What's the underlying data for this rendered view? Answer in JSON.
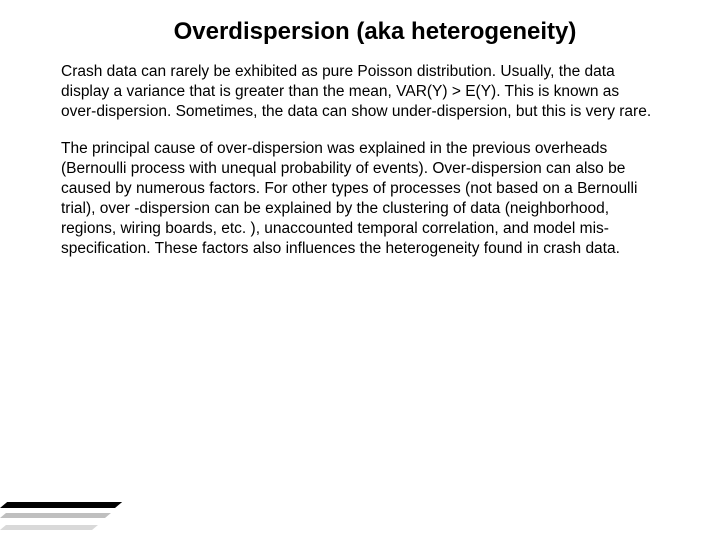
{
  "slide": {
    "title": "Overdispersion (aka heterogeneity)",
    "paragraph1": "Crash data can rarely be exhibited as pure Poisson distribution. Usually, the data display a variance that is greater than the mean, VAR(Y) > E(Y). This is known as over-dispersion. Sometimes, the data can show under-dispersion, but this is very rare.",
    "paragraph2": "The principal cause of over-dispersion was explained in the previous overheads (Bernoulli process with unequal probability of events). Over-dispersion can also be caused by numerous factors. For other types of processes (not based on a Bernoulli trial), over -dispersion can be explained by the clustering of data (neighborhood, regions, wiring boards, etc. ), unaccounted temporal correlation, and model mis-specification. These factors also influences the heterogeneity found in crash data."
  },
  "style": {
    "background_color": "#ffffff",
    "title_color": "#000000",
    "text_color": "#000000",
    "title_fontsize": 24,
    "body_fontsize": 15.5,
    "font_family": "Tahoma, Arial, sans-serif",
    "accent_colors": [
      "#000000",
      "#bfbfbf",
      "#d9d9d9"
    ]
  }
}
